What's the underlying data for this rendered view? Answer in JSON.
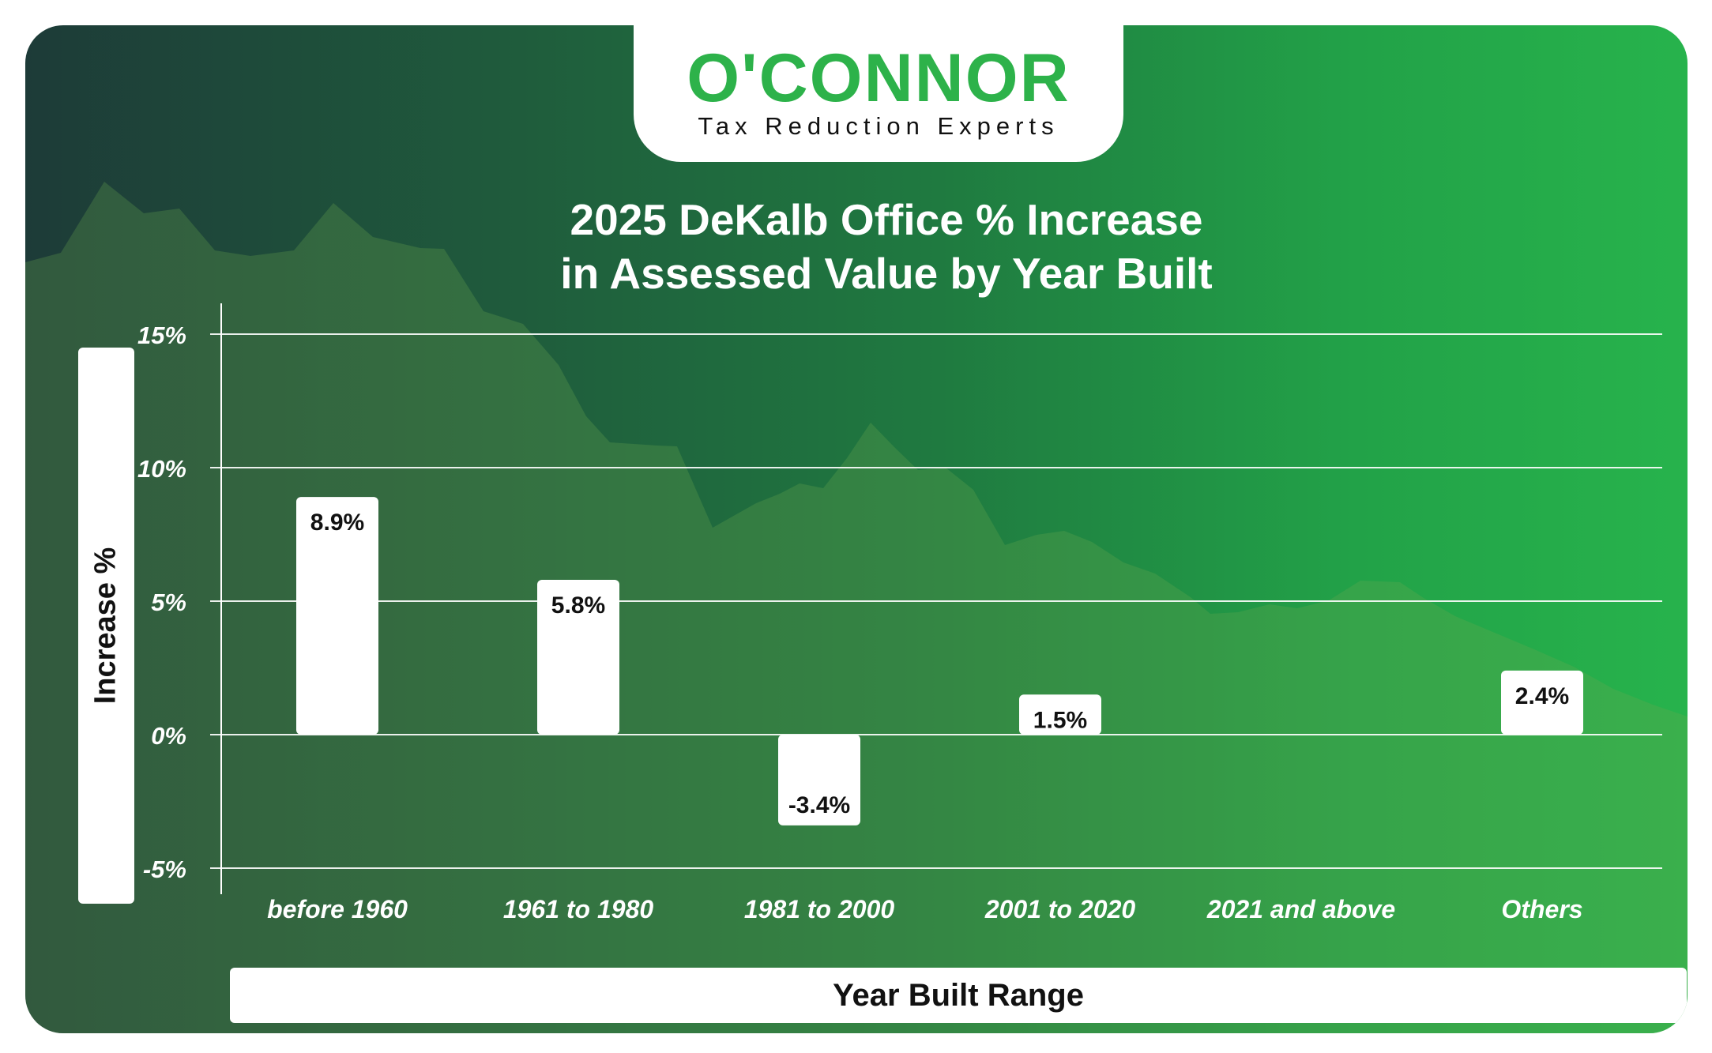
{
  "brand": {
    "name": "O'CONNOR",
    "tagline": "Tax Reduction Experts"
  },
  "chart_data": {
    "type": "bar",
    "title_line1": "2025 DeKalb Office % Increase",
    "title_line2": "in Assessed Value by Year Built",
    "xlabel": "Year Built Range",
    "ylabel": "Increase %",
    "categories": [
      "before 1960",
      "1961 to 1980",
      "1981 to 2000",
      "2001 to 2020",
      "2021 and above",
      "Others"
    ],
    "values": [
      8.9,
      5.8,
      -3.4,
      1.5,
      null,
      2.4
    ],
    "data_labels": [
      "8.9%",
      "5.8%",
      "-3.4%",
      "1.5%",
      "",
      "2.4%"
    ],
    "yticks": [
      15,
      10,
      5,
      0,
      -5
    ],
    "ytick_labels": [
      "15%",
      "10%",
      "5%",
      "0%",
      "-5%"
    ],
    "ylim": [
      -5,
      15
    ],
    "grid": true,
    "legend": "none"
  },
  "colors": {
    "brand_green": "#2db24a",
    "bar_fill": "#ffffff",
    "text_dark": "#111111",
    "text_light": "#ffffff"
  }
}
